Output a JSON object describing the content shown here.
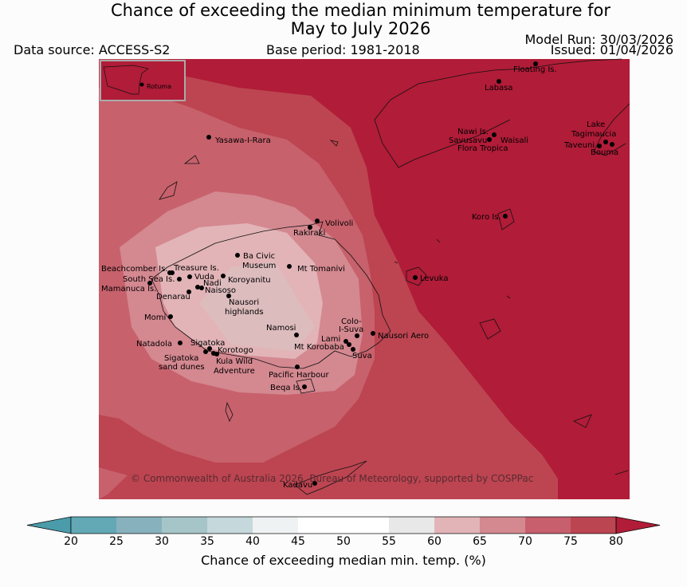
{
  "title_line1": "Chance of exceeding the median minimum temperature for",
  "title_line2": "May to July 2026",
  "data_source": "Data source: ACCESS-S2",
  "base_period": "Base period: 1981-2018",
  "model_run": "Model Run: 30/03/2026",
  "issued": "Issued: 01/04/2026",
  "copyright": "© Commonwealth of Australia 2026, Bureau of Meteorology, supported by COSPPac",
  "inset_label": "Rotuma",
  "places": {
    "floating": "Floating Is.",
    "labasa": "Labasa",
    "yasawa": "Yasawa-I-Rara",
    "nawi": "Nawi Is.",
    "savusavu": "Savusavu",
    "waisali": "Waisali",
    "flora": "Flora Tropica",
    "lake": "Lake",
    "tagimaucia": "Tagimaucia",
    "taveuni": "Taveuni",
    "bouma": "Bouma",
    "koro": "Koro Is.",
    "volivoli": "Volivoli",
    "rakiraki": "Rakiraki",
    "ba_civic": "Ba Civic",
    "museum": "Museum",
    "mt_tomanivi": "Mt Tomanivi",
    "beachcomber": "Beachcomber Is.",
    "treasure": "Treasure Is.",
    "south_sea": "South Sea Is.",
    "vuda": "Vuda",
    "koroyanitu": "Koroyanitu",
    "nadi": "Nadi",
    "mamanuca": "Mamanuca Is.",
    "naisoso": "Naisoso",
    "denarau": "Denarau",
    "nausori_hl1": "Nausori",
    "nausori_hl2": "highlands",
    "levuka": "Levuka",
    "momi": "Momi",
    "namosi": "Namosi",
    "colo1": "Colo-",
    "colo2": "I-Suva",
    "lami": "Lami",
    "nausori_aero": "Nausori Aero",
    "mt_korobaba": "Mt Korobaba",
    "suva": "Suva",
    "natadola": "Natadola",
    "sigatoka": "Sigatoka",
    "korotogo": "Korotogo",
    "sig_dunes1": "Sigatoka",
    "sig_dunes2": "sand dunes",
    "kula1": "Kula Wild",
    "kula2": "Adventure",
    "pacific_harbour": "Pacific Harbour",
    "beqa": "Beqa Is.",
    "kadavu": "Kadavu"
  },
  "colorbar": {
    "label": "Chance of exceeding median min. temp. (%)",
    "ticks": [
      "20",
      "25",
      "30",
      "35",
      "40",
      "45",
      "50",
      "55",
      "60",
      "65",
      "70",
      "75",
      "80"
    ],
    "colors": [
      "#62a9b5",
      "#87b2bd",
      "#a6c5c9",
      "#c5d8dc",
      "#eef2f3",
      "#ffffff",
      "#ffffff",
      "#e8e8e8",
      "#e2b4b7",
      "#d48890",
      "#c75f6c",
      "#bb4551"
    ],
    "under_color": "#4a9caa",
    "over_color": "#b11c38"
  },
  "field_colors": {
    "c80": "#b11c38",
    "c75": "#bc4551",
    "c70": "#c7616c",
    "c65": "#d48890",
    "c60": "#e2b4b7",
    "c58": "#ddbcbe"
  }
}
